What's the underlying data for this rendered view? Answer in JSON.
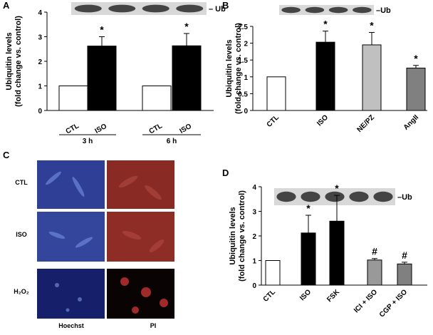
{
  "chart_data": [
    {
      "type": "bar",
      "panel_label": "A",
      "blot_label": "– Ub",
      "ylabel": [
        "Ubiquitin levels",
        "(fold change vs. control)"
      ],
      "categories": [
        "CTL",
        "ISO",
        "CTL",
        "ISO"
      ],
      "groups": [
        "3 h",
        "6 h"
      ],
      "values": [
        1,
        2.62,
        1,
        2.63
      ],
      "errors": [
        null,
        0.38,
        null,
        0.5
      ],
      "colors": [
        "#ffffff",
        "#000000",
        "#ffffff",
        "#000000"
      ],
      "annotations": [
        null,
        "*",
        null,
        "*"
      ],
      "ylim": [
        0,
        4
      ],
      "yticks": [
        0,
        1,
        2,
        3,
        4
      ]
    },
    {
      "type": "bar",
      "panel_label": "B",
      "blot_label": "–Ub",
      "ylabel": [
        "Ubiquitin levels",
        "(fold change vs. control)"
      ],
      "categories": [
        "CTL",
        "ISO",
        "NE/PZ",
        "AngII"
      ],
      "values": [
        1,
        2.03,
        1.95,
        1.26
      ],
      "errors": [
        null,
        0.33,
        0.37,
        0.08
      ],
      "colors": [
        "#ffffff",
        "#000000",
        "#c0c0c0",
        "#808080"
      ],
      "annotations": [
        null,
        "*",
        "*",
        "*"
      ],
      "ylim": [
        0,
        2.5
      ],
      "yticks": [
        0,
        0.5,
        1,
        1.5,
        2,
        2.5
      ]
    },
    {
      "type": "bar",
      "panel_label": "D",
      "blot_label": "–Ub",
      "ylabel": [
        "Ubiquitin levels",
        "(fold change vs. control)"
      ],
      "categories": [
        "CTL",
        "ISO",
        "FSK",
        "ICI + ISO",
        "CGP + ISO"
      ],
      "values": [
        1,
        2.12,
        2.6,
        1.02,
        0.86
      ],
      "errors": [
        null,
        0.72,
        1.05,
        0.06,
        0.07
      ],
      "colors": [
        "#ffffff",
        "#000000",
        "#000000",
        "#999999",
        "#808080"
      ],
      "annotations": [
        null,
        "*",
        "*",
        "#",
        "#"
      ],
      "ylim": [
        0,
        4
      ],
      "yticks": [
        0,
        1,
        2,
        3,
        4
      ]
    }
  ],
  "panel_c": {
    "panel_label": "C",
    "rows": [
      "CTL",
      "ISO",
      "H₂O₂"
    ],
    "columns": [
      "Hoechst",
      "PI"
    ]
  }
}
